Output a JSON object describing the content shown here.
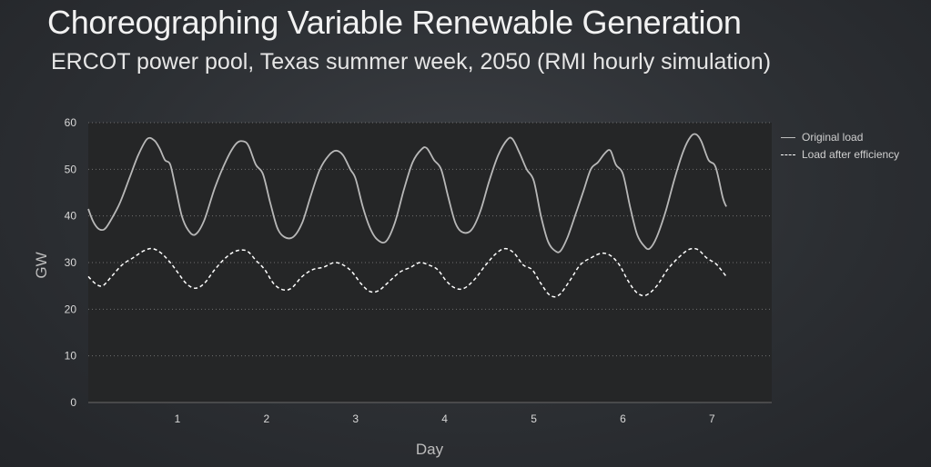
{
  "slide": {
    "title": "Choreographing Variable Renewable Generation",
    "subtitle": "ERCOT power pool, Texas summer week, 2050 (RMI hourly simulation)"
  },
  "colors": {
    "background": "#2e3135",
    "plot_area": "#252627",
    "original_load": "#b8b8b8",
    "load_after_efficiency": "#ffffff",
    "text": "#e8e8e8"
  },
  "chart_data": {
    "type": "line",
    "xlabel": "Day",
    "ylabel": "GW",
    "ylim": [
      0,
      60
    ],
    "yticks": [
      0,
      10,
      20,
      30,
      40,
      50,
      60
    ],
    "xticks": [
      1,
      2,
      3,
      4,
      5,
      6,
      7
    ],
    "xlim": [
      0,
      7.67
    ],
    "grid": "horizontal dotted",
    "legend_position": "right",
    "series": [
      {
        "name": "Original load",
        "style": "solid",
        "points": [
          [
            0.0,
            41.5
          ],
          [
            0.05,
            39.0
          ],
          [
            0.1,
            37.5
          ],
          [
            0.15,
            37.0
          ],
          [
            0.2,
            37.5
          ],
          [
            0.28,
            40.0
          ],
          [
            0.36,
            43.0
          ],
          [
            0.46,
            48.0
          ],
          [
            0.56,
            53.0
          ],
          [
            0.66,
            56.5
          ],
          [
            0.74,
            56.2
          ],
          [
            0.8,
            54.5
          ],
          [
            0.86,
            52.0
          ],
          [
            0.92,
            51.0
          ],
          [
            0.98,
            46.0
          ],
          [
            1.05,
            40.0
          ],
          [
            1.12,
            37.0
          ],
          [
            1.2,
            36.0
          ],
          [
            1.3,
            39.0
          ],
          [
            1.42,
            46.0
          ],
          [
            1.55,
            52.0
          ],
          [
            1.66,
            55.5
          ],
          [
            1.74,
            56.0
          ],
          [
            1.8,
            55.0
          ],
          [
            1.88,
            51.0
          ],
          [
            1.96,
            49.0
          ],
          [
            2.04,
            43.0
          ],
          [
            2.12,
            37.5
          ],
          [
            2.2,
            35.5
          ],
          [
            2.3,
            35.5
          ],
          [
            2.4,
            38.5
          ],
          [
            2.5,
            44.5
          ],
          [
            2.6,
            50.0
          ],
          [
            2.7,
            53.0
          ],
          [
            2.78,
            54.0
          ],
          [
            2.86,
            53.0
          ],
          [
            2.94,
            50.0
          ],
          [
            3.0,
            48.0
          ],
          [
            3.08,
            42.0
          ],
          [
            3.16,
            37.5
          ],
          [
            3.24,
            35.0
          ],
          [
            3.34,
            34.5
          ],
          [
            3.44,
            38.5
          ],
          [
            3.54,
            45.5
          ],
          [
            3.64,
            51.5
          ],
          [
            3.74,
            54.3
          ],
          [
            3.8,
            54.5
          ],
          [
            3.88,
            52.0
          ],
          [
            3.96,
            50.0
          ],
          [
            4.04,
            44.0
          ],
          [
            4.12,
            38.5
          ],
          [
            4.2,
            36.5
          ],
          [
            4.3,
            37.0
          ],
          [
            4.4,
            41.0
          ],
          [
            4.5,
            47.5
          ],
          [
            4.6,
            53.0
          ],
          [
            4.7,
            56.3
          ],
          [
            4.76,
            56.5
          ],
          [
            4.84,
            53.5
          ],
          [
            4.92,
            50.0
          ],
          [
            5.0,
            47.5
          ],
          [
            5.08,
            40.0
          ],
          [
            5.16,
            34.5
          ],
          [
            5.24,
            32.5
          ],
          [
            5.3,
            32.5
          ],
          [
            5.38,
            35.5
          ],
          [
            5.48,
            41.0
          ],
          [
            5.56,
            45.5
          ],
          [
            5.64,
            50.0
          ],
          [
            5.72,
            51.5
          ],
          [
            5.8,
            53.5
          ],
          [
            5.86,
            54.0
          ],
          [
            5.92,
            51.0
          ],
          [
            6.0,
            49.0
          ],
          [
            6.08,
            42.0
          ],
          [
            6.16,
            36.0
          ],
          [
            6.24,
            33.5
          ],
          [
            6.3,
            33.0
          ],
          [
            6.38,
            35.5
          ],
          [
            6.48,
            41.0
          ],
          [
            6.58,
            48.0
          ],
          [
            6.68,
            54.0
          ],
          [
            6.76,
            57.0
          ],
          [
            6.82,
            57.5
          ],
          [
            6.88,
            56.0
          ],
          [
            6.96,
            52.0
          ],
          [
            7.04,
            50.5
          ],
          [
            7.12,
            44.0
          ],
          [
            7.16,
            42.0
          ]
        ]
      },
      {
        "name": "Load after efficiency",
        "style": "dashed",
        "points": [
          [
            0.0,
            27.0
          ],
          [
            0.08,
            25.5
          ],
          [
            0.16,
            25.0
          ],
          [
            0.26,
            27.0
          ],
          [
            0.38,
            29.5
          ],
          [
            0.5,
            31.0
          ],
          [
            0.62,
            32.5
          ],
          [
            0.72,
            33.0
          ],
          [
            0.82,
            32.0
          ],
          [
            0.92,
            30.0
          ],
          [
            1.0,
            28.0
          ],
          [
            1.1,
            25.5
          ],
          [
            1.2,
            24.5
          ],
          [
            1.3,
            25.5
          ],
          [
            1.42,
            28.5
          ],
          [
            1.54,
            31.0
          ],
          [
            1.66,
            32.5
          ],
          [
            1.78,
            32.5
          ],
          [
            1.88,
            30.5
          ],
          [
            1.98,
            28.5
          ],
          [
            2.08,
            25.5
          ],
          [
            2.18,
            24.2
          ],
          [
            2.28,
            24.5
          ],
          [
            2.4,
            27.0
          ],
          [
            2.52,
            28.5
          ],
          [
            2.64,
            29.0
          ],
          [
            2.76,
            30.0
          ],
          [
            2.86,
            29.5
          ],
          [
            2.96,
            28.0
          ],
          [
            3.06,
            25.5
          ],
          [
            3.16,
            23.8
          ],
          [
            3.26,
            24.0
          ],
          [
            3.38,
            26.0
          ],
          [
            3.5,
            28.0
          ],
          [
            3.62,
            29.0
          ],
          [
            3.72,
            30.0
          ],
          [
            3.82,
            29.5
          ],
          [
            3.92,
            28.5
          ],
          [
            4.02,
            26.0
          ],
          [
            4.12,
            24.5
          ],
          [
            4.22,
            24.5
          ],
          [
            4.34,
            26.5
          ],
          [
            4.46,
            29.5
          ],
          [
            4.58,
            32.0
          ],
          [
            4.68,
            33.0
          ],
          [
            4.78,
            32.0
          ],
          [
            4.88,
            29.5
          ],
          [
            4.98,
            28.5
          ],
          [
            5.08,
            25.5
          ],
          [
            5.18,
            23.0
          ],
          [
            5.28,
            23.0
          ],
          [
            5.4,
            26.0
          ],
          [
            5.52,
            29.5
          ],
          [
            5.64,
            31.0
          ],
          [
            5.76,
            32.0
          ],
          [
            5.86,
            31.5
          ],
          [
            5.96,
            29.5
          ],
          [
            6.06,
            26.0
          ],
          [
            6.16,
            23.5
          ],
          [
            6.26,
            23.0
          ],
          [
            6.38,
            25.0
          ],
          [
            6.5,
            28.5
          ],
          [
            6.62,
            31.0
          ],
          [
            6.74,
            32.8
          ],
          [
            6.84,
            32.8
          ],
          [
            6.94,
            31.0
          ],
          [
            7.04,
            29.8
          ],
          [
            7.1,
            28.5
          ],
          [
            7.16,
            27.0
          ]
        ]
      }
    ]
  }
}
